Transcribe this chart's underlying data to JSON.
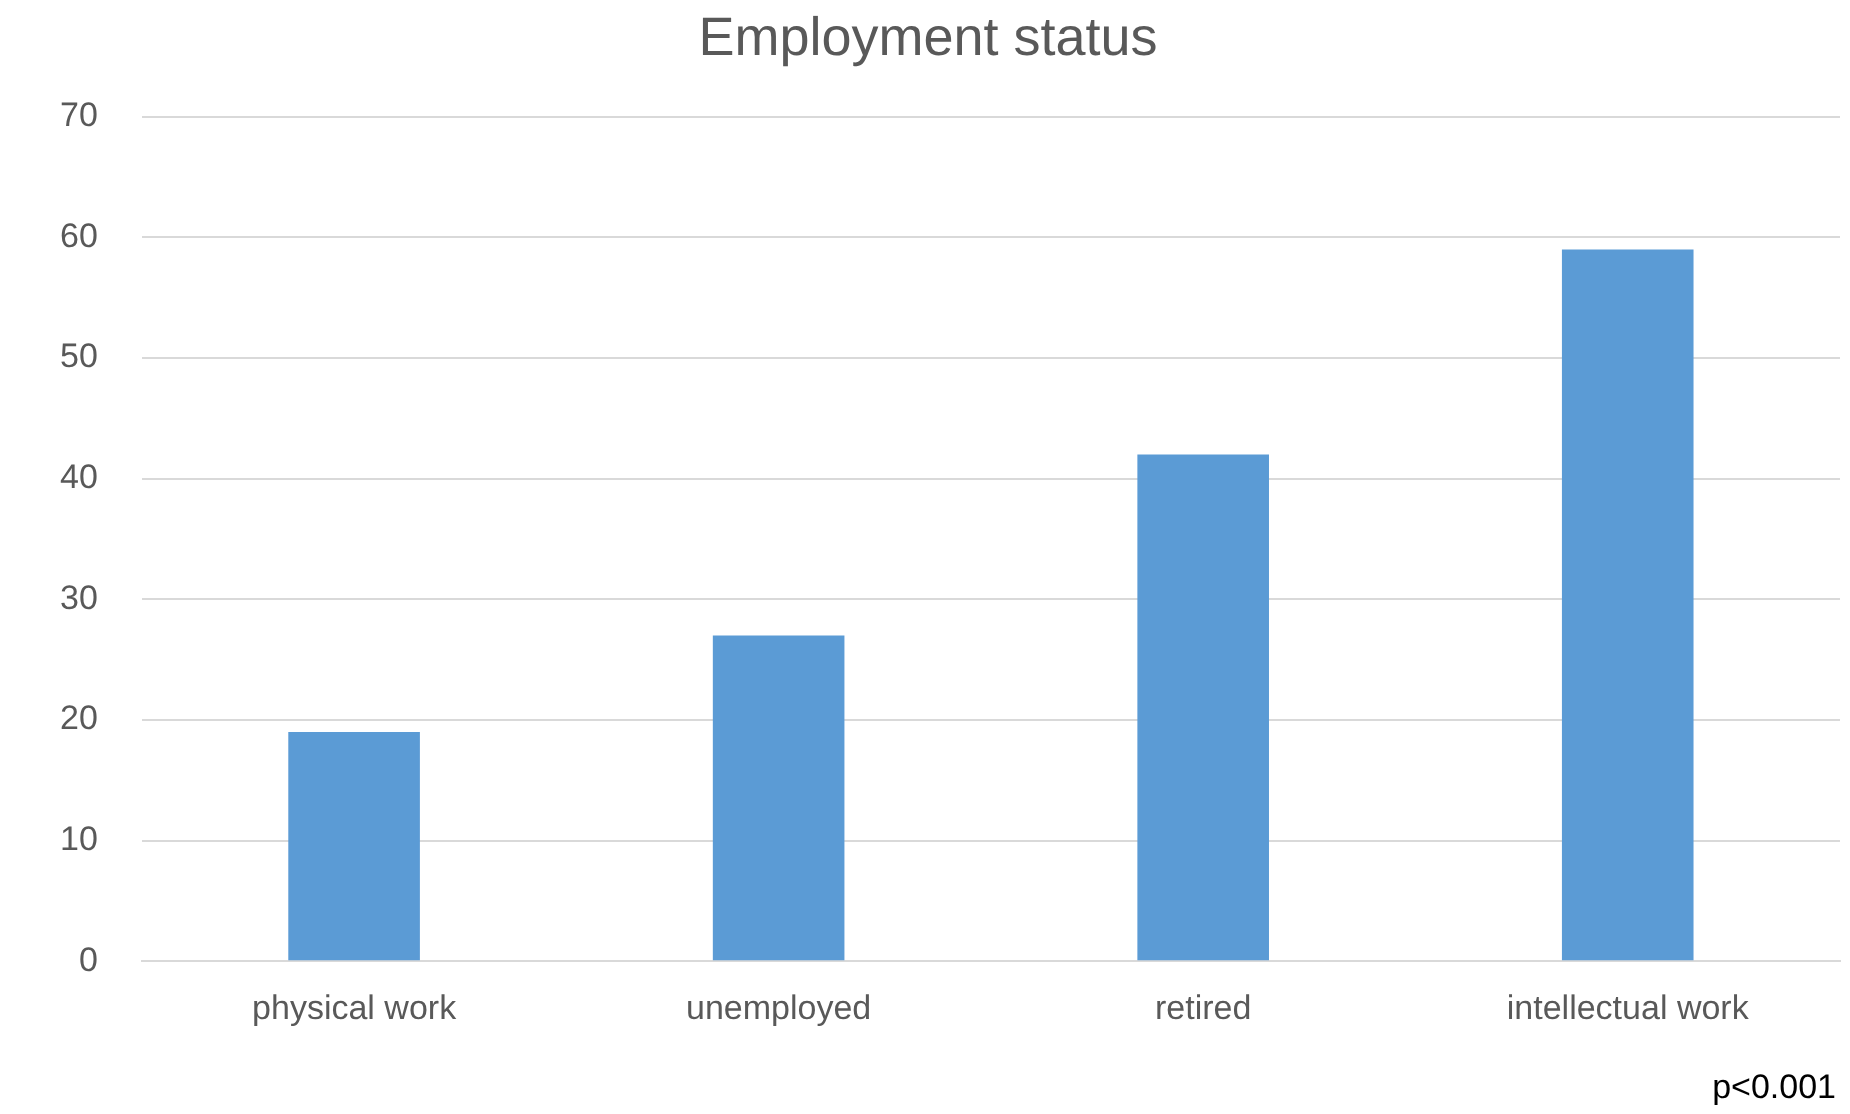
{
  "chart_data": {
    "type": "bar",
    "title": "Employment status",
    "categories": [
      "physical work",
      "unemployed",
      "retired",
      "intellectual work"
    ],
    "values": [
      19,
      27,
      42,
      59
    ],
    "color": "#5b9bd5",
    "ylim": [
      0,
      70
    ],
    "yticks": [
      0,
      10,
      20,
      30,
      40,
      50,
      60,
      70
    ],
    "grid": "y",
    "annotations": [
      "p<0.001"
    ]
  }
}
